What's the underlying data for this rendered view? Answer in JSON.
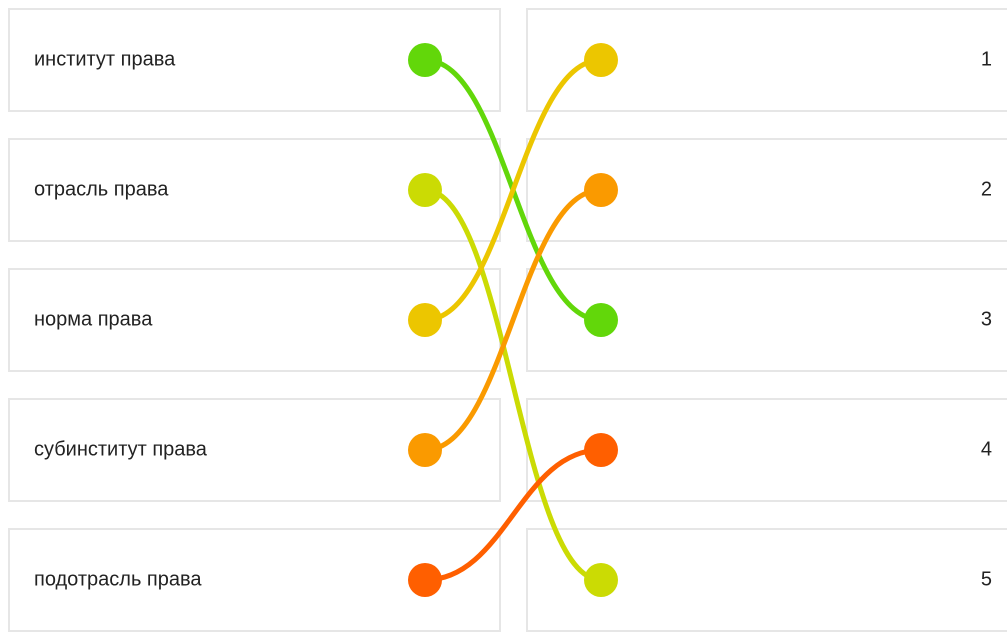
{
  "left_items": [
    {
      "label": "институт права",
      "color": "#62d70a"
    },
    {
      "label": "отрасль права",
      "color": "#cbdb04"
    },
    {
      "label": "норма права",
      "color": "#ecc600"
    },
    {
      "label": "субинститут права",
      "color": "#fa9a00"
    },
    {
      "label": "подотрасль права",
      "color": "#ff5f00"
    }
  ],
  "right_items": [
    {
      "label": "1",
      "color": "#ecc600"
    },
    {
      "label": "2",
      "color": "#fa9a00"
    },
    {
      "label": "3",
      "color": "#62d70a"
    },
    {
      "label": "4",
      "color": "#ff5f00"
    },
    {
      "label": "5",
      "color": "#cbdb04"
    }
  ],
  "connections": [
    {
      "from": 1,
      "to": 3,
      "color": "#62d70a"
    },
    {
      "from": 2,
      "to": 5,
      "color": "#cbdb04"
    },
    {
      "from": 3,
      "to": 1,
      "color": "#ecc600"
    },
    {
      "from": 4,
      "to": 2,
      "color": "#fa9a00"
    },
    {
      "from": 5,
      "to": 4,
      "color": "#ff5f00"
    }
  ]
}
